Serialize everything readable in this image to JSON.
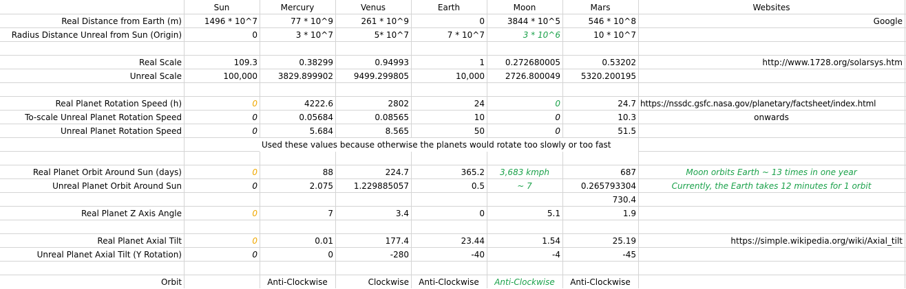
{
  "header": {
    "sun": "Sun",
    "mercury": "Mercury",
    "venus": "Venus",
    "earth": "Earth",
    "moon": "Moon",
    "mars": "Mars",
    "websites": "Websites"
  },
  "rows": {
    "r2": {
      "label": "Real Distance from Earth (m)",
      "sun": "1496 * 10^7",
      "mercury": "77 * 10^9",
      "venus": "261 * 10^9",
      "earth": "0",
      "moon": "3844 * 10^5",
      "mars": "546 * 10^8",
      "web": "Google"
    },
    "r3": {
      "label": "Radius Distance Unreal from Sun (Origin)",
      "sun": "0",
      "mercury": "3 * 10^7",
      "venus": "5* 10^7",
      "earth": "7 * 10^7",
      "moon": "3 * 10^6",
      "mars": "10 * 10^7"
    },
    "r5": {
      "label": "Real Scale",
      "sun": "109.3",
      "mercury": "0.38299",
      "venus": "0.94993",
      "earth": "1",
      "moon": "0.272680005",
      "mars": "0.53202",
      "web": "http://www.1728.org/solarsys.htm"
    },
    "r6": {
      "label": "Unreal Scale",
      "sun": "100,000",
      "mercury": "3829.899902",
      "venus": "9499.299805",
      "earth": "10,000",
      "moon": "2726.800049",
      "mars": "5320.200195"
    },
    "r8": {
      "label": "Real Planet Rotation Speed (h)",
      "sun": "0",
      "mercury": "4222.6",
      "venus": "2802",
      "earth": "24",
      "moon": "0",
      "mars": "24.7",
      "web": "https://nssdc.gsfc.nasa.gov/planetary/factsheet/index.html"
    },
    "r9": {
      "label": "To-scale Unreal Planet Rotation Speed",
      "sun": "0",
      "mercury": "0.05684",
      "venus": "0.08565",
      "earth": "10",
      "moon": "0",
      "mars": "10.3",
      "web": "onwards"
    },
    "r10": {
      "label": "Unreal Planet Rotation Speed",
      "sun": "0",
      "mercury": "5.684",
      "venus": "8.565",
      "earth": "50",
      "moon": "0",
      "mars": "51.5"
    },
    "r11": {
      "note": "Used these values because otherwise the planets would rotate too slowly or too fast"
    },
    "r13": {
      "label": "Real Planet Orbit Around Sun (days)",
      "sun": "0",
      "mercury": "88",
      "venus": "224.7",
      "earth": "365.2",
      "moon": "3,683 kmph",
      "mars": "687",
      "web": "Moon orbits Earth ~ 13 times in one year"
    },
    "r14": {
      "label": "Unreal Planet Orbit Around Sun",
      "sun": "0",
      "mercury": "2.075",
      "venus": "1.229885057",
      "earth": "0.5",
      "moon": "~ 7",
      "mars": "0.265793304",
      "web": "Currently, the Earth takes 12 minutes for 1 orbit"
    },
    "r15": {
      "mars": "730.4"
    },
    "r16": {
      "label": "Real Planet Z Axis Angle",
      "sun": "0",
      "mercury": "7",
      "venus": "3.4",
      "earth": "0",
      "moon": "5.1",
      "mars": "1.9"
    },
    "r18": {
      "label": "Real Planet Axial Tilt",
      "sun": "0",
      "mercury": "0.01",
      "venus": "177.4",
      "earth": "23.44",
      "moon": "1.54",
      "mars": "25.19",
      "web": "https://simple.wikipedia.org/wiki/Axial_tilt"
    },
    "r19": {
      "label": "Unreal Planet Axial Tilt (Y Rotation)",
      "sun": "0",
      "mercury": "0",
      "venus": "-280",
      "earth": "-40",
      "moon": "-4",
      "mars": "-45"
    },
    "r21": {
      "label": "Orbit",
      "mercury": "Anti-Clockwise",
      "venus": "Clockwise",
      "earth": "Anti-Clockwise",
      "moon": "Anti-Clockwise",
      "mars": "Anti-Clockwise"
    }
  },
  "colors": {
    "grid": "#d4d4d4",
    "orange": "#f0a800",
    "green": "#1aa14a"
  }
}
